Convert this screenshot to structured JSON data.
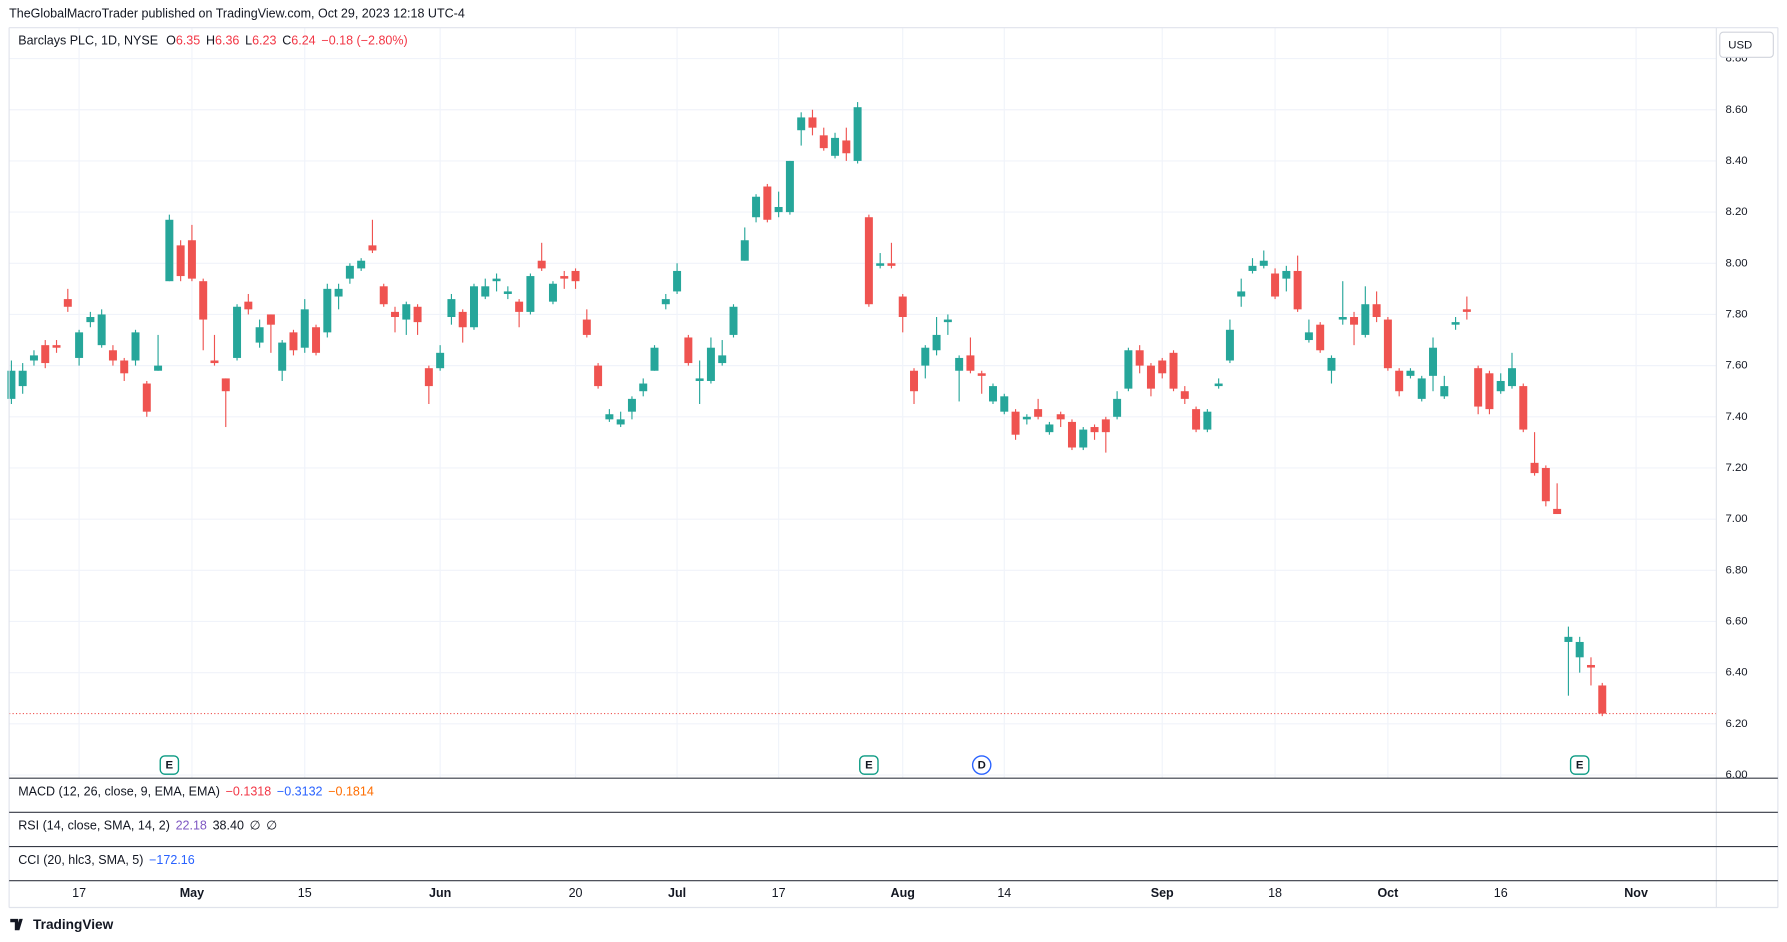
{
  "header": {
    "attribution": "TheGlobalMacroTrader published on TradingView.com, Oct 29, 2023 12:18 UTC-4"
  },
  "legend": {
    "symbol": "Barclays PLC, 1D, NYSE",
    "open_label": "O",
    "open": 6.35,
    "high_label": "H",
    "high": 6.36,
    "low_label": "L",
    "low": 6.23,
    "close_label": "C",
    "close": 6.24,
    "change": "−0.18 (−2.80%)",
    "value_color": "#f23645"
  },
  "currency": "USD",
  "indicators": [
    {
      "name": "MACD (12, 26, close, 9, EMA, EMA)",
      "values": [
        {
          "text": "−0.1318",
          "color": "#f23645"
        },
        {
          "text": "−0.3132",
          "color": "#2962ff"
        },
        {
          "text": "−0.1814",
          "color": "#ff6d00"
        }
      ]
    },
    {
      "name": "RSI (14, close, SMA, 14, 2)",
      "values": [
        {
          "text": "22.18",
          "color": "#7e57c2"
        },
        {
          "text": "38.40",
          "color": "#131722"
        },
        {
          "text": "∅",
          "color": "#131722"
        },
        {
          "text": "∅",
          "color": "#131722"
        }
      ]
    },
    {
      "name": "CCI (20, hlc3, SMA, 5)",
      "values": [
        {
          "text": "−172.16",
          "color": "#2962ff"
        }
      ]
    }
  ],
  "footer": {
    "brand": "TradingView"
  },
  "chart_data": {
    "type": "candlestick",
    "categories": [
      null,
      null,
      null,
      null,
      null,
      null,
      "17",
      null,
      null,
      null,
      null,
      null,
      null,
      null,
      null,
      null,
      "May",
      null,
      null,
      null,
      null,
      null,
      null,
      null,
      null,
      null,
      "15",
      null,
      null,
      null,
      null,
      null,
      null,
      null,
      null,
      null,
      null,
      null,
      "Jun",
      null,
      null,
      null,
      null,
      null,
      null,
      null,
      null,
      null,
      null,
      null,
      "20",
      null,
      null,
      null,
      null,
      null,
      null,
      null,
      null,
      "Jul",
      null,
      null,
      null,
      null,
      null,
      null,
      null,
      null,
      "17",
      null,
      null,
      null,
      null,
      null,
      null,
      null,
      null,
      null,
      null,
      "Aug",
      null,
      null,
      null,
      null,
      null,
      null,
      null,
      null,
      "14",
      null,
      null,
      null,
      null,
      null,
      null,
      null,
      null,
      null,
      null,
      null,
      null,
      null,
      "Sep",
      null,
      null,
      null,
      null,
      null,
      null,
      null,
      null,
      null,
      "18",
      null,
      null,
      null,
      null,
      null,
      null,
      null,
      null,
      null,
      "Oct",
      null,
      null,
      null,
      null,
      null,
      null,
      null,
      null,
      null,
      "16",
      null,
      null,
      null,
      null,
      null,
      null,
      null,
      null,
      null,
      null,
      null,
      "Nov"
    ],
    "open": [
      7.47,
      7.52,
      7.62,
      7.68,
      7.68,
      7.86,
      7.63,
      7.77,
      7.68,
      7.66,
      7.62,
      7.62,
      7.53,
      7.58,
      7.93,
      8.07,
      8.09,
      7.93,
      7.62,
      7.55,
      7.63,
      7.85,
      7.69,
      7.8,
      7.58,
      7.73,
      7.67,
      7.75,
      7.73,
      7.87,
      7.94,
      7.98,
      8.07,
      7.91,
      7.81,
      7.78,
      7.83,
      7.59,
      7.59,
      7.79,
      7.81,
      7.75,
      7.87,
      7.93,
      7.88,
      7.85,
      7.81,
      8.01,
      7.85,
      7.95,
      7.97,
      7.78,
      7.6,
      7.39,
      7.37,
      7.42,
      7.5,
      7.58,
      7.84,
      7.89,
      7.71,
      7.54,
      7.54,
      7.61,
      7.72,
      8.01,
      8.18,
      8.3,
      8.2,
      8.2,
      8.52,
      8.57,
      8.5,
      8.42,
      8.48,
      8.4,
      8.18,
      7.99,
      8.0,
      7.87,
      7.58,
      7.6,
      7.66,
      7.77,
      7.58,
      7.64,
      7.57,
      7.46,
      7.42,
      7.42,
      7.39,
      7.43,
      7.34,
      7.41,
      7.38,
      7.28,
      7.36,
      7.39,
      7.4,
      7.51,
      7.66,
      7.6,
      7.62,
      7.65,
      7.5,
      7.43,
      7.35,
      7.52,
      7.62,
      7.87,
      7.97,
      7.99,
      7.96,
      7.94,
      7.97,
      7.7,
      7.76,
      7.58,
      7.78,
      7.79,
      7.72,
      7.84,
      7.78,
      7.58,
      7.56,
      7.47,
      7.56,
      7.48,
      7.76,
      7.82,
      7.59,
      7.57,
      7.5,
      7.52,
      7.52,
      7.22,
      7.2,
      7.04,
      6.52,
      6.46,
      6.43,
      6.35,
      null,
      null,
      null
    ],
    "high": [
      7.62,
      7.61,
      7.66,
      7.7,
      7.7,
      7.9,
      7.74,
      7.81,
      7.82,
      7.68,
      7.63,
      7.74,
      7.54,
      7.72,
      8.19,
      8.09,
      8.15,
      7.94,
      7.72,
      7.55,
      7.84,
      7.88,
      7.78,
      7.8,
      7.7,
      7.74,
      7.86,
      7.76,
      7.92,
      7.92,
      8.0,
      8.02,
      8.17,
      7.92,
      7.83,
      7.85,
      7.84,
      7.6,
      7.68,
      7.88,
      7.82,
      7.92,
      7.94,
      7.96,
      7.91,
      7.86,
      7.96,
      8.08,
      7.93,
      7.97,
      7.98,
      7.82,
      7.61,
      7.43,
      7.42,
      7.48,
      7.55,
      7.68,
      7.88,
      8.0,
      7.72,
      7.62,
      7.71,
      7.7,
      7.84,
      8.14,
      8.27,
      8.31,
      8.28,
      8.4,
      8.59,
      8.6,
      8.53,
      8.51,
      8.53,
      8.63,
      8.19,
      8.04,
      8.08,
      7.88,
      7.59,
      7.68,
      7.79,
      7.8,
      7.64,
      7.71,
      7.58,
      7.53,
      7.49,
      7.43,
      7.41,
      7.47,
      7.38,
      7.42,
      7.39,
      7.36,
      7.37,
      7.4,
      7.5,
      7.67,
      7.68,
      7.61,
      7.63,
      7.66,
      7.52,
      7.44,
      7.43,
      7.55,
      7.78,
      7.94,
      8.02,
      8.05,
      7.98,
      7.99,
      8.03,
      7.78,
      7.77,
      7.64,
      7.93,
      7.81,
      7.91,
      7.89,
      7.79,
      7.59,
      7.59,
      7.56,
      7.71,
      7.56,
      7.79,
      7.87,
      7.6,
      7.58,
      7.57,
      7.65,
      7.53,
      7.34,
      7.21,
      7.14,
      6.58,
      6.54,
      6.46,
      6.36,
      null,
      null,
      null
    ],
    "low": [
      7.45,
      7.49,
      7.6,
      7.59,
      7.65,
      7.81,
      7.6,
      7.75,
      7.67,
      7.6,
      7.54,
      7.6,
      7.4,
      7.58,
      7.93,
      7.93,
      7.93,
      7.66,
      7.6,
      7.36,
      7.62,
      7.8,
      7.67,
      7.65,
      7.54,
      7.64,
      7.65,
      7.64,
      7.71,
      7.82,
      7.92,
      7.97,
      8.04,
      7.83,
      7.73,
      7.72,
      7.72,
      7.45,
      7.58,
      7.76,
      7.69,
      7.74,
      7.86,
      7.89,
      7.86,
      7.75,
      7.8,
      7.97,
      7.84,
      7.9,
      7.9,
      7.71,
      7.51,
      7.38,
      7.36,
      7.39,
      7.48,
      7.58,
      7.82,
      7.88,
      7.6,
      7.45,
      7.53,
      7.6,
      7.71,
      8.01,
      8.16,
      8.16,
      8.18,
      8.19,
      8.46,
      8.5,
      8.44,
      8.41,
      8.4,
      8.39,
      7.83,
      7.98,
      7.98,
      7.73,
      7.45,
      7.55,
      7.64,
      7.72,
      7.46,
      7.57,
      7.49,
      7.45,
      7.41,
      7.31,
      7.37,
      7.39,
      7.33,
      7.36,
      7.27,
      7.27,
      7.31,
      7.26,
      7.39,
      7.5,
      7.57,
      7.48,
      7.55,
      7.5,
      7.45,
      7.34,
      7.34,
      7.51,
      7.61,
      7.83,
      7.96,
      7.98,
      7.86,
      7.89,
      7.81,
      7.69,
      7.65,
      7.53,
      7.76,
      7.68,
      7.71,
      7.77,
      7.58,
      7.48,
      7.55,
      7.46,
      7.5,
      7.47,
      7.74,
      7.78,
      7.41,
      7.41,
      7.49,
      7.51,
      7.34,
      7.17,
      7.05,
      7.02,
      6.31,
      6.4,
      6.35,
      6.23,
      null,
      null,
      null
    ],
    "close": [
      7.58,
      7.58,
      7.64,
      7.61,
      7.67,
      7.83,
      7.73,
      7.79,
      7.8,
      7.62,
      7.57,
      7.73,
      7.42,
      7.6,
      8.17,
      7.95,
      7.94,
      7.78,
      7.61,
      7.5,
      7.83,
      7.82,
      7.75,
      7.76,
      7.69,
      7.66,
      7.82,
      7.65,
      7.9,
      7.9,
      7.99,
      8.01,
      8.05,
      7.84,
      7.79,
      7.84,
      7.77,
      7.52,
      7.65,
      7.86,
      7.75,
      7.91,
      7.91,
      7.94,
      7.89,
      7.81,
      7.95,
      7.98,
      7.92,
      7.94,
      7.93,
      7.72,
      7.52,
      7.41,
      7.39,
      7.47,
      7.53,
      7.67,
      7.86,
      7.97,
      7.61,
      7.55,
      7.67,
      7.64,
      7.83,
      8.09,
      8.26,
      8.17,
      8.22,
      8.4,
      8.57,
      8.53,
      8.45,
      8.49,
      8.43,
      8.61,
      7.84,
      8.0,
      7.99,
      7.79,
      7.5,
      7.67,
      7.72,
      7.78,
      7.63,
      7.58,
      7.56,
      7.52,
      7.48,
      7.33,
      7.4,
      7.4,
      7.37,
      7.39,
      7.28,
      7.35,
      7.34,
      7.34,
      7.47,
      7.66,
      7.6,
      7.51,
      7.57,
      7.51,
      7.47,
      7.35,
      7.42,
      7.53,
      7.74,
      7.89,
      7.99,
      8.01,
      7.87,
      7.97,
      7.82,
      7.73,
      7.66,
      7.63,
      7.79,
      7.76,
      7.84,
      7.79,
      7.59,
      7.5,
      7.58,
      7.55,
      7.67,
      7.52,
      7.77,
      7.81,
      7.44,
      7.43,
      7.54,
      7.59,
      7.35,
      7.18,
      7.07,
      7.02,
      6.54,
      6.52,
      6.42,
      6.24,
      null,
      null,
      null
    ],
    "events": [
      null,
      null,
      null,
      null,
      null,
      null,
      null,
      null,
      null,
      null,
      null,
      null,
      null,
      null,
      "E",
      null,
      null,
      null,
      null,
      null,
      null,
      null,
      null,
      null,
      null,
      null,
      null,
      null,
      null,
      null,
      null,
      null,
      null,
      null,
      null,
      null,
      null,
      null,
      null,
      null,
      null,
      null,
      null,
      null,
      null,
      null,
      null,
      null,
      null,
      null,
      null,
      null,
      null,
      null,
      null,
      null,
      null,
      null,
      null,
      null,
      null,
      null,
      null,
      null,
      null,
      null,
      null,
      null,
      null,
      null,
      null,
      null,
      null,
      null,
      null,
      null,
      "E",
      null,
      null,
      null,
      null,
      null,
      null,
      null,
      null,
      null,
      "D",
      null,
      null,
      null,
      null,
      null,
      null,
      null,
      null,
      null,
      null,
      null,
      null,
      null,
      null,
      null,
      null,
      null,
      null,
      null,
      null,
      null,
      null,
      null,
      null,
      null,
      null,
      null,
      null,
      null,
      null,
      null,
      null,
      null,
      null,
      null,
      null,
      null,
      null,
      null,
      null,
      null,
      null,
      null,
      null,
      null,
      null,
      null,
      null,
      null,
      null,
      null,
      null,
      "E",
      null,
      null,
      null,
      null,
      null
    ],
    "event_colors": {
      "E": "#089981",
      "D": "#2962ff"
    },
    "up_color": "#26a69a",
    "down_color": "#ef5350",
    "ylim": [
      5.99,
      8.805
    ],
    "yticks": [
      {
        "value": 6,
        "label": "6.00"
      },
      {
        "value": 6.2,
        "label": "6.20"
      },
      {
        "value": 6.4,
        "label": "6.40"
      },
      {
        "value": 6.6,
        "label": "6.60"
      },
      {
        "value": 6.8,
        "label": "6.80"
      },
      {
        "value": 7,
        "label": "7.00"
      },
      {
        "value": 7.2,
        "label": "7.20"
      },
      {
        "value": 7.4,
        "label": "7.40"
      },
      {
        "value": 7.6,
        "label": "7.60"
      },
      {
        "value": 7.8,
        "label": "7.80"
      },
      {
        "value": 8,
        "label": "8.00"
      },
      {
        "value": 8.2,
        "label": "8.20"
      },
      {
        "value": 8.4,
        "label": "8.40"
      },
      {
        "value": 8.6,
        "label": "8.60"
      },
      {
        "value": 8.8,
        "label": "8.80"
      }
    ],
    "grid": true,
    "last_price_line": true
  }
}
